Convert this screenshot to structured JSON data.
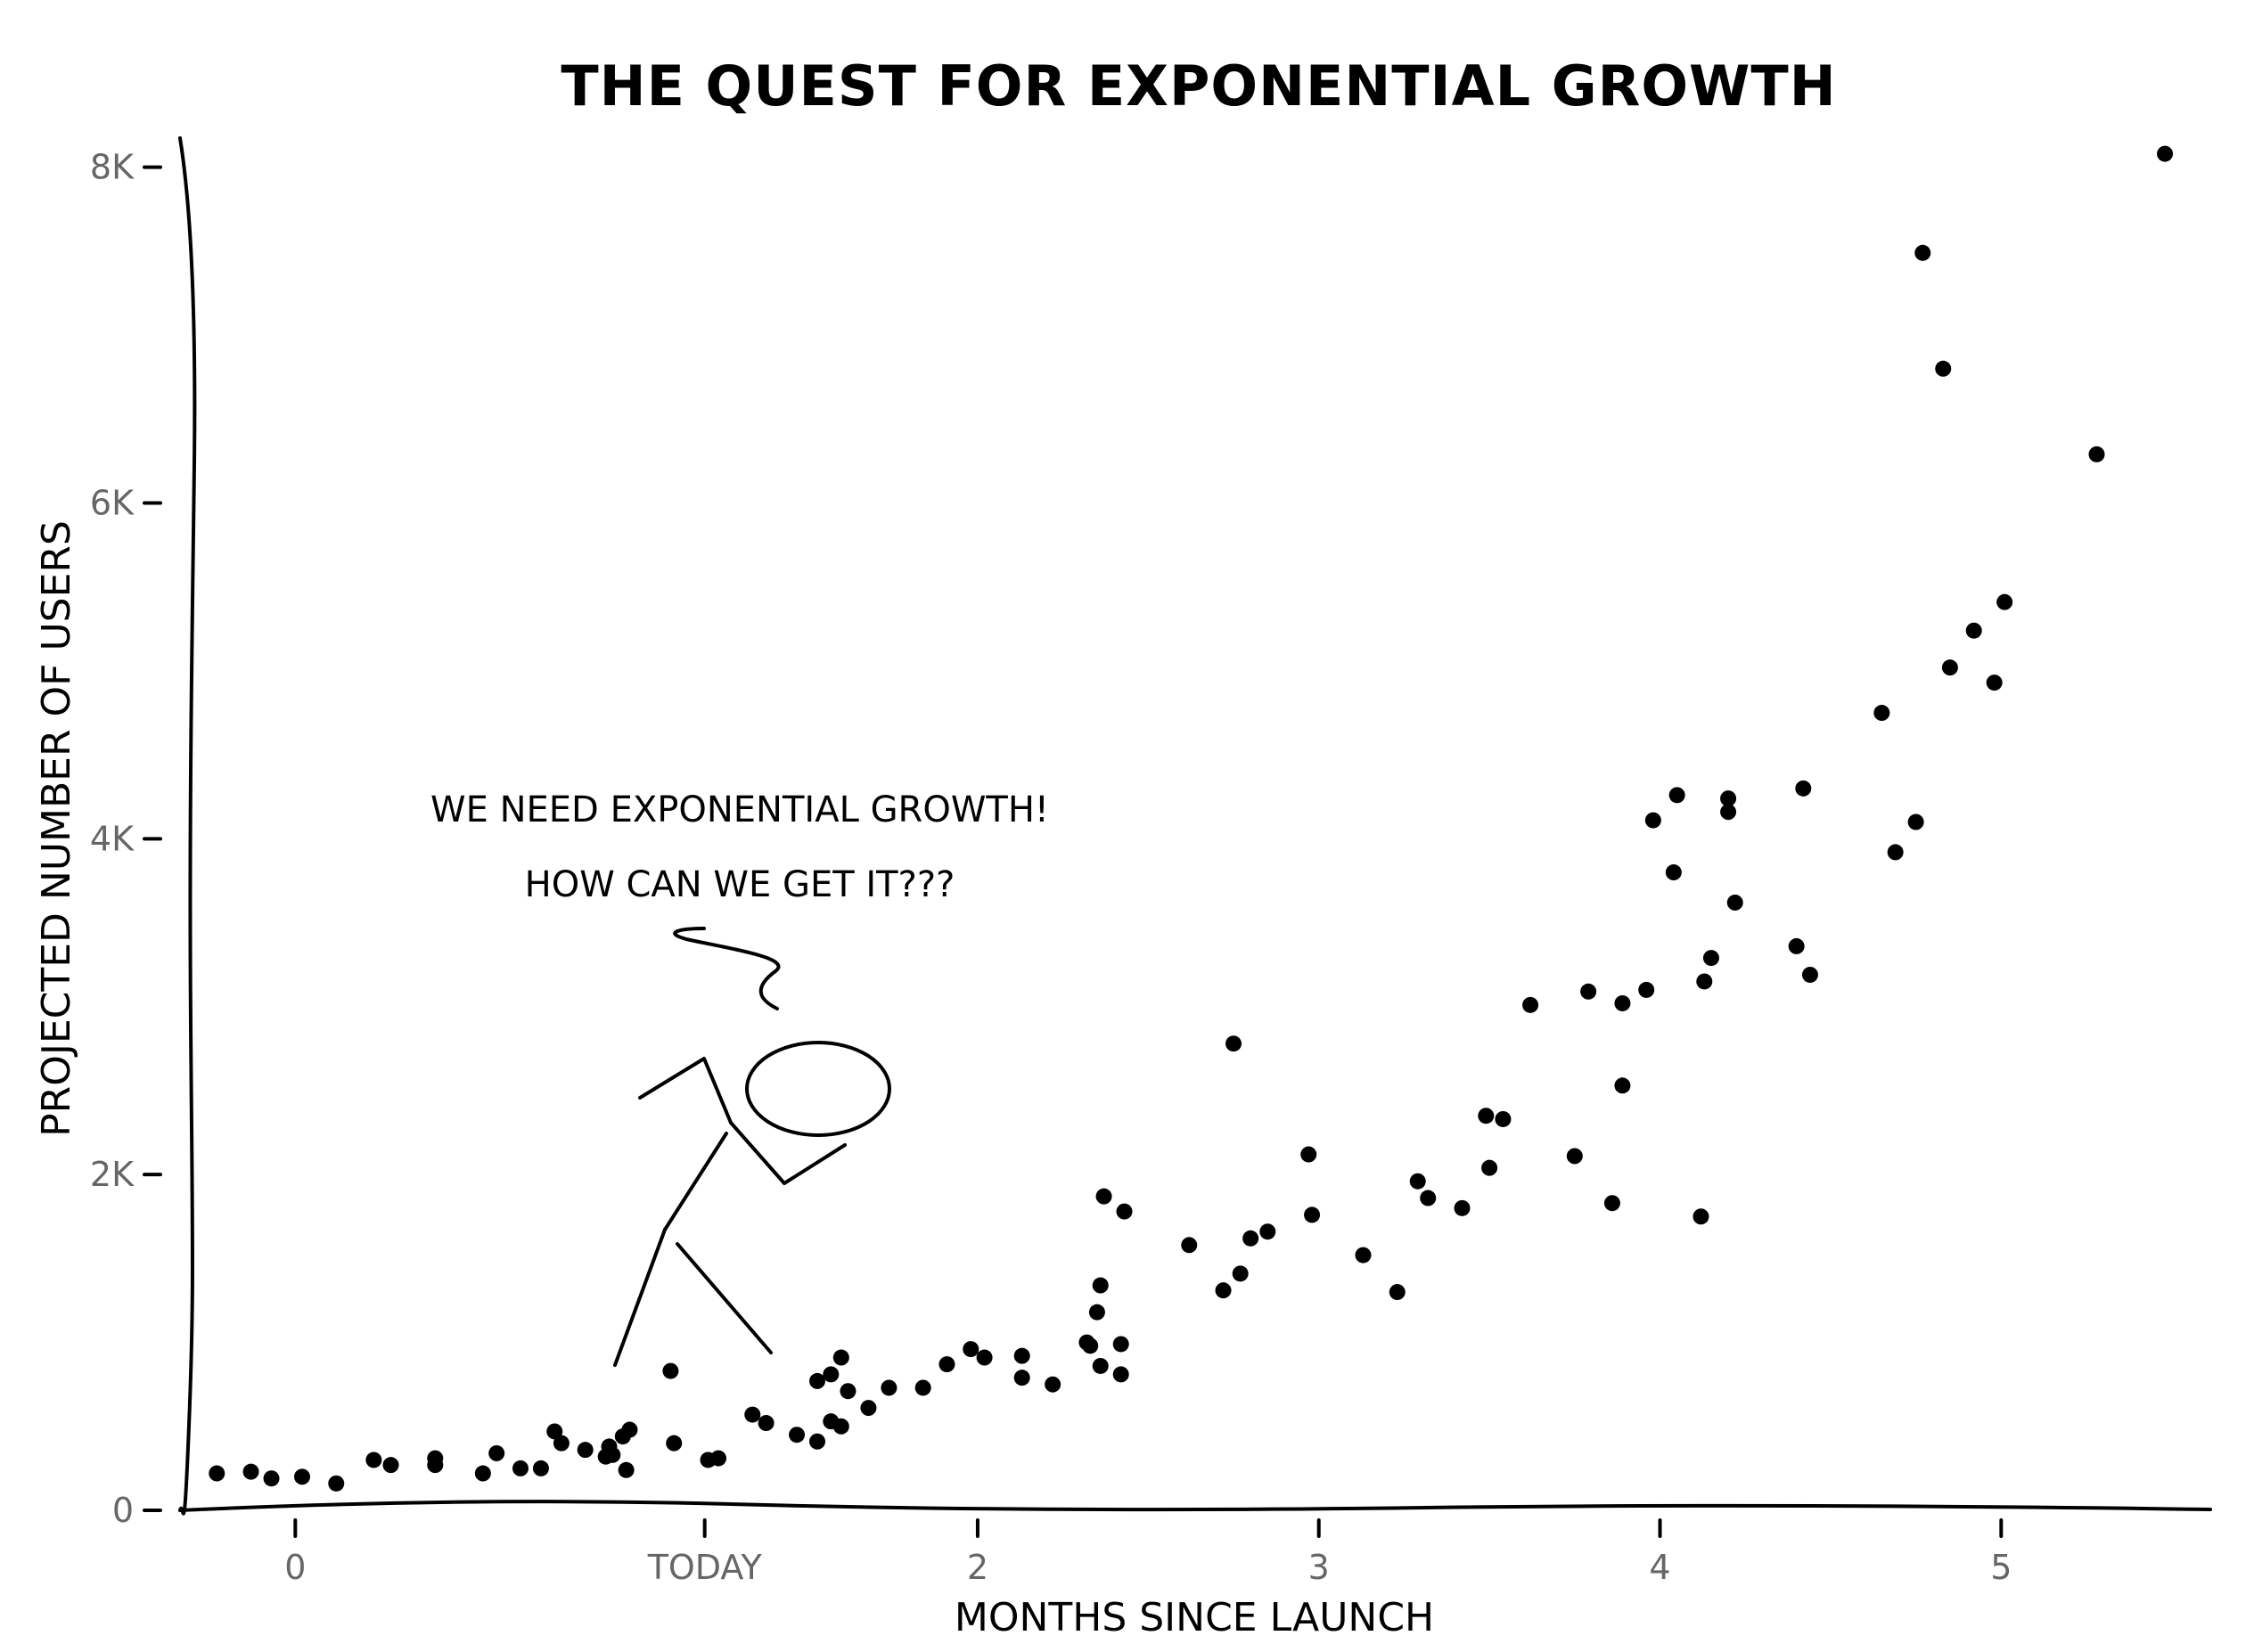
{
  "chart_data": {
    "type": "scatter",
    "title": "THE QUEST FOR EXPONENTIAL GROWTH",
    "xlabel": "MONTHS SINCE LAUNCH",
    "ylabel": "PROJECTED NUMBER OF USERS",
    "xlim": [
      -0.33,
      5.6
    ],
    "ylim": [
      0,
      8200
    ],
    "x_ticks": [
      {
        "value": 0,
        "label": "0"
      },
      {
        "value": 1.2,
        "label": "TODAY"
      },
      {
        "value": 2,
        "label": "2"
      },
      {
        "value": 3,
        "label": "3"
      },
      {
        "value": 4,
        "label": "4"
      },
      {
        "value": 5,
        "label": "5"
      }
    ],
    "y_ticks": [
      {
        "value": 0,
        "label": "0"
      },
      {
        "value": 2000,
        "label": "2K"
      },
      {
        "value": 4000,
        "label": "4K"
      },
      {
        "value": 6000,
        "label": "6K"
      },
      {
        "value": 8000,
        "label": "8K"
      }
    ],
    "grid": false,
    "annotation": [
      "WE NEED EXPONENTIAL GROWTH!",
      "HOW CAN WE GET IT???"
    ],
    "x": [
      -0.23,
      -0.13,
      -0.07,
      0.02,
      0.12,
      0.23,
      0.28,
      0.41,
      0.41,
      0.55,
      0.59,
      0.66,
      0.72,
      0.76,
      0.78,
      0.85,
      0.91,
      0.92,
      0.93,
      0.96,
      0.97,
      0.98,
      1.1,
      1.11,
      1.21,
      1.24,
      1.34,
      1.38,
      1.47,
      1.53,
      1.53,
      1.57,
      1.57,
      1.6,
      1.6,
      1.62,
      1.68,
      1.74,
      1.84,
      1.91,
      1.98,
      2.02,
      2.13,
      2.13,
      2.22,
      2.32,
      2.33,
      2.35,
      2.36,
      2.36,
      2.37,
      2.42,
      2.42,
      2.43,
      2.62,
      2.72,
      2.75,
      2.77,
      2.8,
      2.85,
      2.97,
      2.98,
      3.13,
      3.23,
      3.29,
      3.32,
      3.42,
      3.49,
      3.5,
      3.54,
      3.62,
      3.75,
      3.79,
      3.86,
      3.89,
      3.89,
      3.96,
      3.98,
      4.04,
      4.05,
      4.12,
      4.13,
      4.15,
      4.2,
      4.2,
      4.22,
      4.4,
      4.42,
      4.44,
      4.65,
      4.69,
      4.75,
      4.77,
      4.83,
      4.85,
      4.92,
      4.98,
      5.01,
      5.28,
      5.48
    ],
    "y": [
      220,
      230,
      190,
      200,
      160,
      300,
      270,
      310,
      270,
      220,
      340,
      250,
      250,
      470,
      400,
      360,
      320,
      380,
      330,
      440,
      240,
      480,
      830,
      400,
      300,
      310,
      570,
      520,
      450,
      770,
      410,
      810,
      530,
      910,
      500,
      710,
      610,
      730,
      730,
      870,
      960,
      910,
      790,
      920,
      750,
      1000,
      980,
      1180,
      860,
      1340,
      1870,
      810,
      990,
      1780,
      1580,
      1310,
      2780,
      1410,
      1620,
      1660,
      2120,
      1760,
      1520,
      1300,
      1960,
      1860,
      1800,
      2350,
      2040,
      2330,
      3010,
      2110,
      3090,
      1830,
      2530,
      3020,
      3100,
      4110,
      3800,
      4260,
      1750,
      3150,
      3290,
      4240,
      4160,
      3620,
      3360,
      4300,
      3190,
      4750,
      3920,
      4100,
      7490,
      6800,
      5020,
      5240,
      4930,
      5410,
      6290,
      8080
    ]
  }
}
